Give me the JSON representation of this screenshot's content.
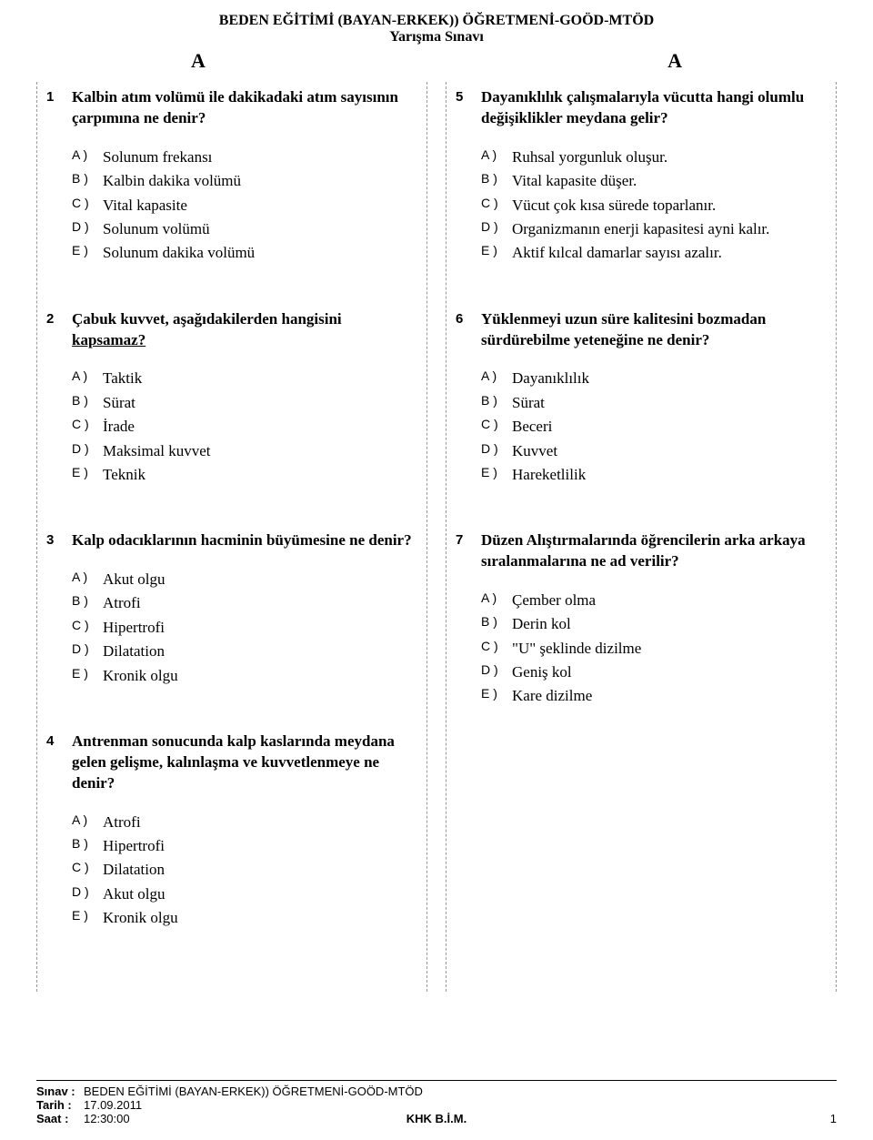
{
  "header": {
    "title": "BEDEN EĞİTİMİ (BAYAN-ERKEK)) ÖĞRETMENİ-GOÖD-MTÖD",
    "subtitle": "Yarışma Sınavı",
    "letter_left": "A",
    "letter_right": "A"
  },
  "option_labels": [
    "A )",
    "B )",
    "C )",
    "D )",
    "E )"
  ],
  "columns": {
    "left": [
      {
        "num": "1",
        "text": "Kalbin atım volümü ile dakikadaki atım sayısının çarpımına ne denir?",
        "options": [
          "Solunum  frekansı",
          "Kalbin dakika volümü",
          "Vital kapasite",
          "Solunum volümü",
          "Solunum dakika volümü"
        ]
      },
      {
        "num": "2",
        "text_pre": "Çabuk kuvvet, aşağıdakilerden hangisini ",
        "text_uline": "kapsamaz?",
        "options": [
          "Taktik",
          "Sürat",
          "İrade",
          "Maksimal kuvvet",
          "Teknik"
        ]
      },
      {
        "num": "3",
        "text": "Kalp odacıklarının hacminin büyümesine ne denir?",
        "options": [
          "Akut olgu",
          "Atrofi",
          "Hipertrofi",
          "Dilatation",
          "Kronik olgu"
        ]
      },
      {
        "num": "4",
        "text": "Antrenman sonucunda kalp kaslarında meydana gelen gelişme, kalınlaşma ve kuvvetlenmeye ne denir?",
        "options": [
          "Atrofi",
          "Hipertrofi",
          "Dilatation",
          "Akut olgu",
          "Kronik olgu"
        ]
      }
    ],
    "right": [
      {
        "num": "5",
        "text": "Dayanıklılık çalışmalarıyla vücutta hangi olumlu değişiklikler meydana gelir?",
        "options": [
          "Ruhsal yorgunluk oluşur.",
          "Vital kapasite düşer.",
          "Vücut çok kısa sürede toparlanır.",
          "Organizmanın enerji kapasitesi ayni kalır.",
          "Aktif kılcal damarlar sayısı azalır."
        ]
      },
      {
        "num": "6",
        "text": "Yüklenmeyi uzun süre kalitesini bozmadan sürdürebilme yeteneğine ne denir?",
        "options": [
          "Dayanıklılık",
          "Sürat",
          "Beceri",
          "Kuvvet",
          "Hareketlilik"
        ]
      },
      {
        "num": "7",
        "text": "Düzen Alıştırmalarında öğrencilerin arka arkaya sıralanmalarına ne ad verilir?",
        "options": [
          "Çember olma",
          "Derin kol",
          "\"U\" şeklinde dizilme",
          "Geniş kol",
          "Kare dizilme"
        ]
      }
    ]
  },
  "footer": {
    "exam_label": "Sınav :",
    "exam_value": "BEDEN EĞİTİMİ (BAYAN-ERKEK)) ÖĞRETMENİ-GOÖD-MTÖD",
    "date_label": "Tarih :",
    "date_value": "17.09.2011",
    "time_label": "Saat  :",
    "time_value": "12:30:00",
    "center": "KHK B.İ.M.",
    "page": "1"
  }
}
